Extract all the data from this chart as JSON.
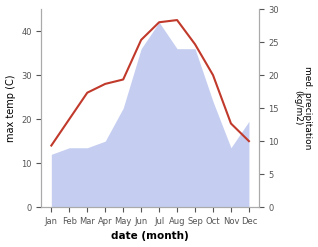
{
  "months": [
    "Jan",
    "Feb",
    "Mar",
    "Apr",
    "May",
    "Jun",
    "Jul",
    "Aug",
    "Sep",
    "Oct",
    "Nov",
    "Dec"
  ],
  "temp": [
    14,
    20,
    26,
    28,
    29,
    38,
    42,
    42.5,
    37,
    30,
    19,
    15
  ],
  "precip": [
    8,
    9,
    9,
    10,
    15,
    24,
    28,
    24,
    24,
    16,
    9,
    13
  ],
  "temp_color": "#c0392b",
  "precip_fill_color": "#c5cef0",
  "left_ylabel": "max temp (C)",
  "right_ylabel": "med. precipitation\n(kg/m2)",
  "xlabel": "date (month)",
  "left_ylim": [
    0,
    45
  ],
  "right_ylim": [
    0,
    30
  ],
  "left_yticks": [
    0,
    10,
    20,
    30,
    40
  ],
  "right_yticks": [
    0,
    5,
    10,
    15,
    20,
    25,
    30
  ],
  "background_color": "#ffffff"
}
